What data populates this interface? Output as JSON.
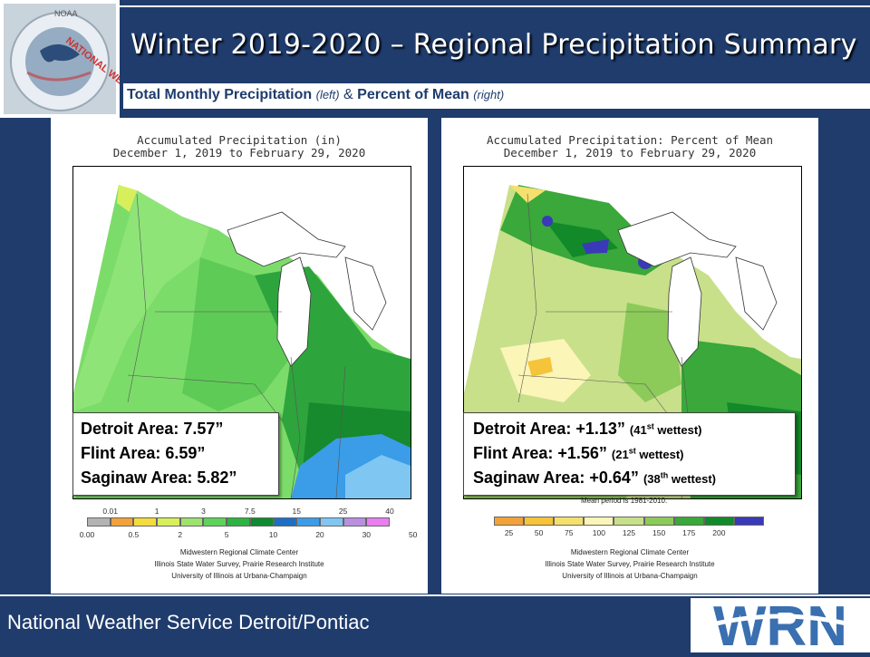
{
  "header": {
    "title": "Winter 2019-2020 – Regional Precipitation Summary",
    "subtitle_part1": "Total Monthly Precipitation",
    "subtitle_left_note": "(left)",
    "subtitle_amp": " & ",
    "subtitle_part2": "Percent of Mean",
    "subtitle_right_note": "(right)"
  },
  "logo": {
    "top_text": "NOAA",
    "ring_text": "NATIONAL WEATHER SERVICE"
  },
  "left_map": {
    "title_line1": "Accumulated Precipitation (in)",
    "title_line2": "December 1, 2019 to February 29, 2020",
    "callout": [
      "Detroit Area: 7.57”",
      "Flint Area: 6.59”",
      "Saginaw Area: 5.82”"
    ],
    "legend_top_labels": [
      "0.01",
      "1",
      "3",
      "7.5",
      "15",
      "25",
      "40"
    ],
    "legend_bottom_labels": [
      "0.00",
      "0.5",
      "2",
      "5",
      "10",
      "20",
      "30",
      "50"
    ],
    "legend_colors": [
      "#b3b3b3",
      "#f2a23a",
      "#f5dc3a",
      "#d8ef5c",
      "#9ee36e",
      "#5ed35a",
      "#2db342",
      "#0f8a2e",
      "#1c6fc4",
      "#3b9ce8",
      "#7fc7f2",
      "#b98fe0",
      "#e87ef0"
    ],
    "credits": [
      "Midwestern Regional Climate Center",
      "Illinois State Water Survey, Prairie Research Institute",
      "University of Illinois at Urbana-Champaign"
    ]
  },
  "right_map": {
    "title_line1": "Accumulated Precipitation: Percent of Mean",
    "title_line2": "December 1, 2019 to February 29, 2020",
    "callout": [
      {
        "main": "Detroit Area: +1.13”",
        "rank_num": "41",
        "rank_sup": "st",
        "rank_word": "wettest"
      },
      {
        "main": "Flint Area: +1.56”",
        "rank_num": "21",
        "rank_sup": "st",
        "rank_word": "wettest"
      },
      {
        "main": "Saginaw Area: +0.64”",
        "rank_num": "38",
        "rank_sup": "th",
        "rank_word": "wettest"
      }
    ],
    "mean_note": "Mean period is 1981-2010.",
    "legend_labels": [
      "25",
      "50",
      "75",
      "100",
      "125",
      "150",
      "175",
      "200"
    ],
    "legend_colors": [
      "#f2a23a",
      "#f5c43a",
      "#f5e06e",
      "#fbf5b8",
      "#c8e08a",
      "#8cca5a",
      "#3aa83a",
      "#128a2a",
      "#3a3ab8"
    ],
    "credits": [
      "Midwestern Regional Climate Center",
      "Illinois State Water Survey, Prairie Research Institute",
      "University of Illinois at Urbana-Champaign"
    ]
  },
  "footer": {
    "text": "National Weather Service Detroit/Pontiac",
    "logo_text": "WRN"
  }
}
